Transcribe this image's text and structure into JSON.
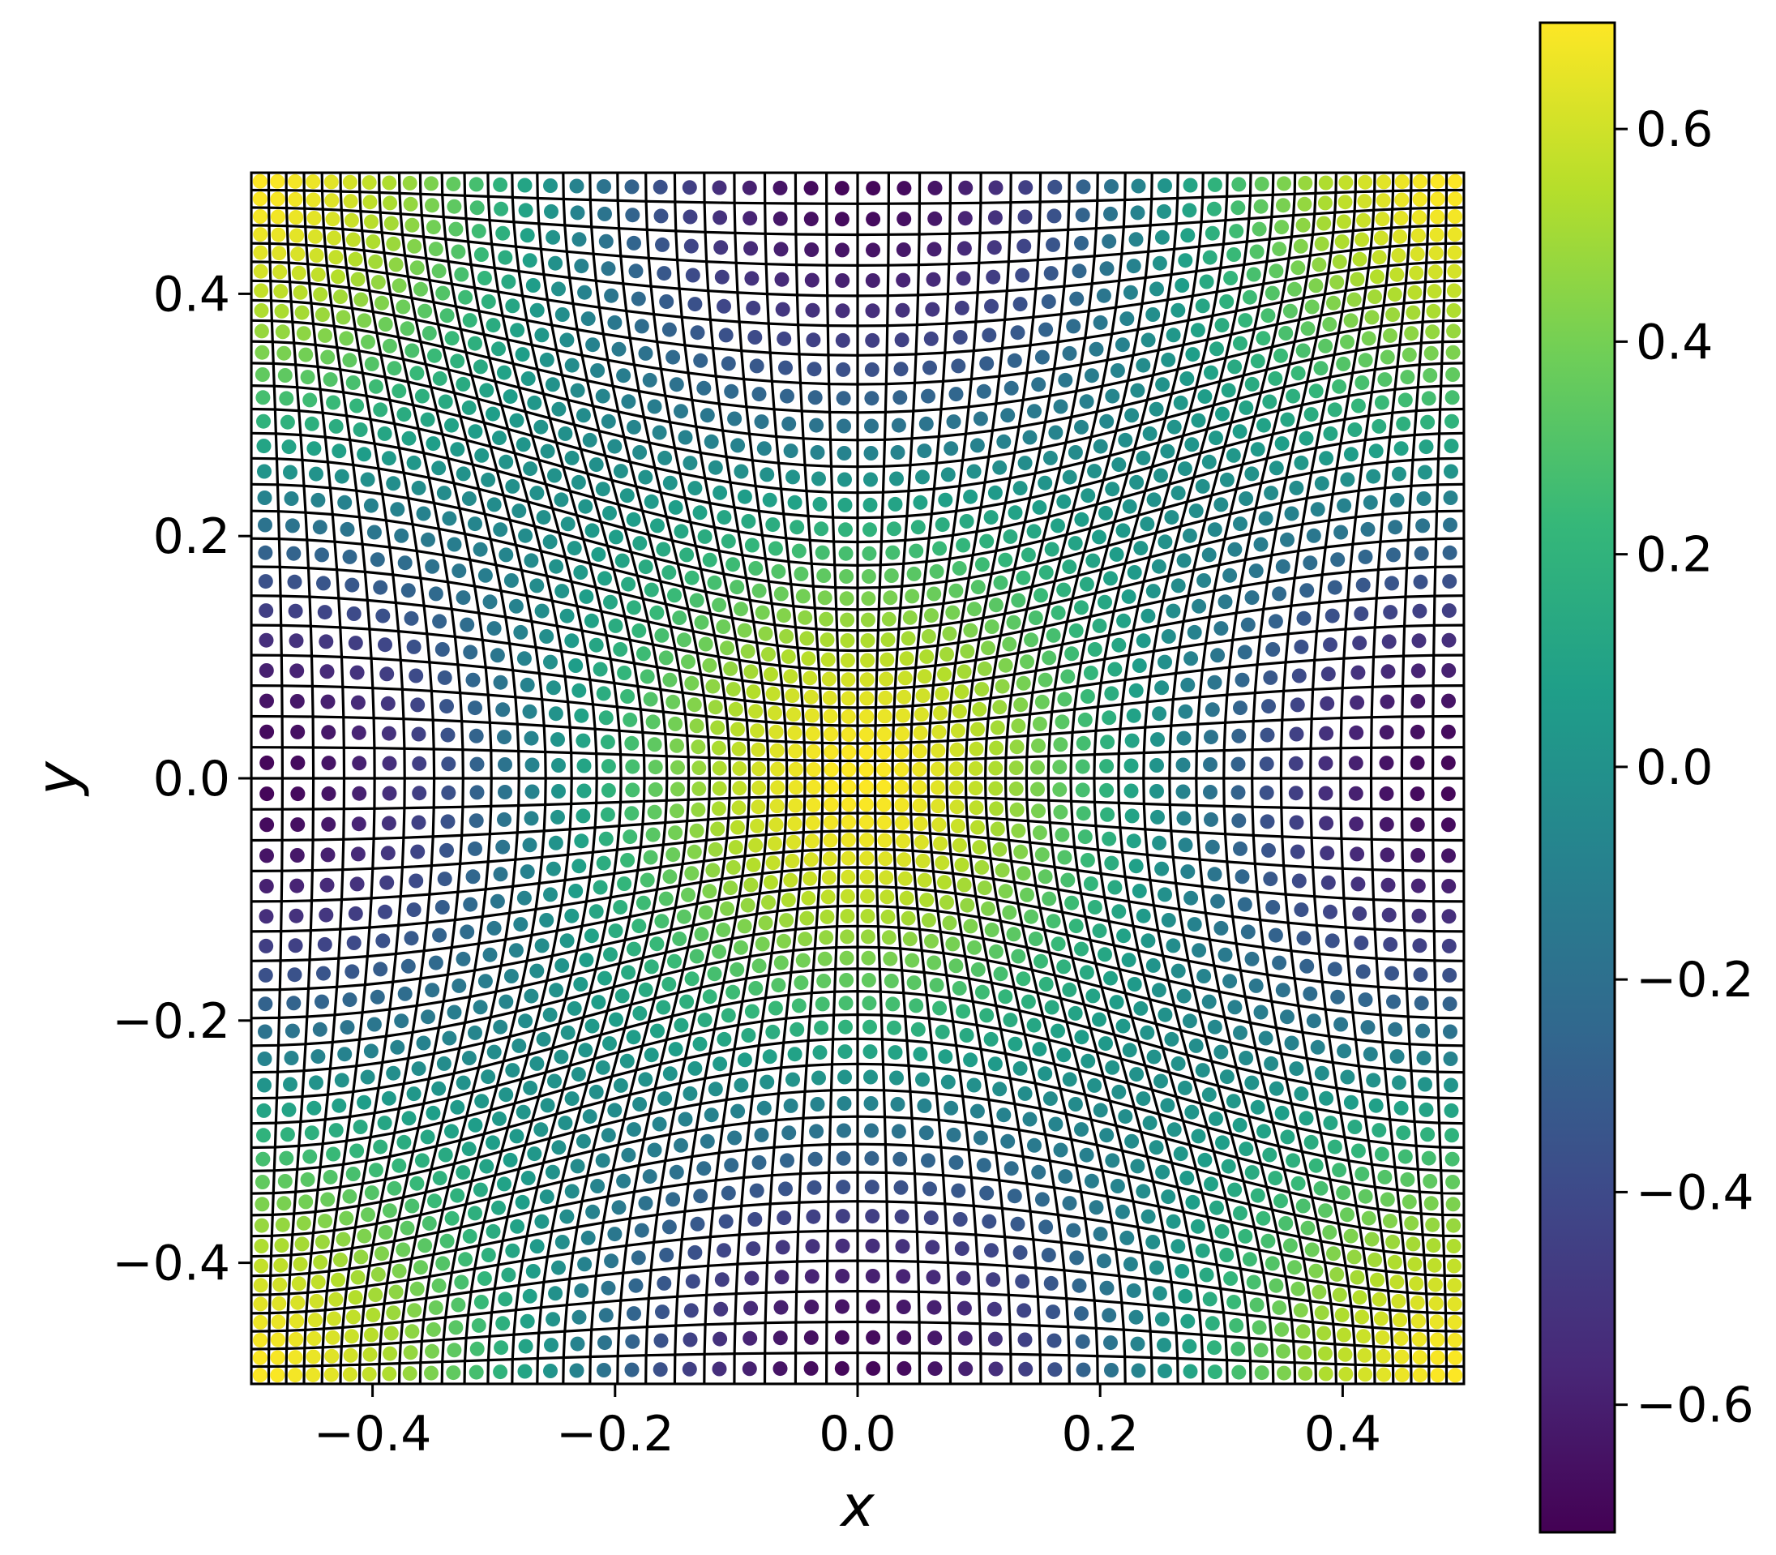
{
  "chart_data": {
    "type": "heatmap",
    "description_kind": "scatter-colored mesh over a distorted curvilinear grid",
    "field": {
      "formula": "0.7 * cos(2*pi*x) * cos(2*pi*y) (approximate)",
      "amplitude": 0.7,
      "period_x": 1.0,
      "period_y": 1.0
    },
    "grid": {
      "nx": 50,
      "ny": 50,
      "visible_mesh": true,
      "mesh_color": "#000000"
    },
    "xlim": [
      -0.5,
      0.5
    ],
    "ylim": [
      -0.5,
      0.5
    ],
    "xlabel": "x",
    "ylabel": "y",
    "xticks": [
      -0.4,
      -0.2,
      0.0,
      0.2,
      0.4
    ],
    "xtick_labels": [
      "−0.4",
      "−0.2",
      "0.0",
      "0.2",
      "0.4"
    ],
    "yticks": [
      -0.4,
      -0.2,
      0.0,
      0.2,
      0.4
    ],
    "ytick_labels": [
      "−0.4",
      "−0.2",
      "0.0",
      "0.2",
      "0.4"
    ],
    "colorbar": {
      "colormap": "viridis",
      "vmin": -0.72,
      "vmax": 0.7,
      "ticks": [
        -0.6,
        -0.4,
        -0.2,
        0.0,
        0.2,
        0.4,
        0.6
      ],
      "tick_labels": [
        "−0.6",
        "−0.4",
        "−0.2",
        "0.0",
        "0.2",
        "0.4",
        "0.6"
      ]
    },
    "colors": {
      "viridis_stops": [
        "#440154",
        "#482878",
        "#3e4989",
        "#31688e",
        "#26828e",
        "#1f9e89",
        "#35b779",
        "#6ece58",
        "#b5de2b",
        "#fde725"
      ]
    }
  }
}
